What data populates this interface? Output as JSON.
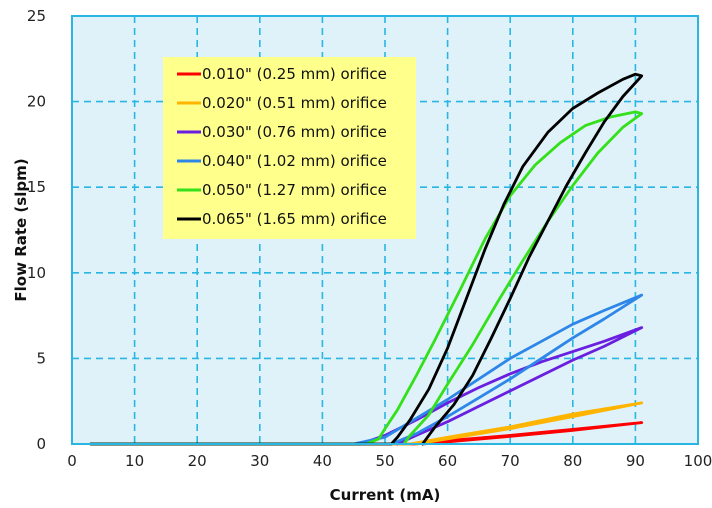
{
  "colors": {
    "plot_background": "#dff2fa",
    "frame_and_grid": "#29b6e3",
    "legend_background": "#ffff8c"
  },
  "chart_data": {
    "type": "line",
    "title": "",
    "xlabel": "Current (mA)",
    "ylabel": "Flow Rate (slpm)",
    "xlim": [
      0,
      100
    ],
    "ylim": [
      0,
      25
    ],
    "xticks": [
      0,
      10,
      20,
      30,
      40,
      50,
      60,
      70,
      80,
      90,
      100
    ],
    "yticks": [
      0,
      5,
      10,
      15,
      20,
      25
    ],
    "grid": "dashed",
    "legend_position": "top-left",
    "series": [
      {
        "name": "0.010\" (0.25 mm) orifice",
        "color": "#ff0000",
        "up": [
          [
            3,
            0
          ],
          [
            55,
            0
          ],
          [
            60,
            0.2
          ],
          [
            70,
            0.5
          ],
          [
            80,
            0.85
          ],
          [
            91,
            1.25
          ]
        ],
        "down": [
          [
            91,
            1.25
          ],
          [
            80,
            0.8
          ],
          [
            70,
            0.45
          ],
          [
            60,
            0.12
          ],
          [
            56,
            0
          ]
        ]
      },
      {
        "name": "0.020\" (0.51 mm) orifice",
        "color": "#ffb400",
        "up": [
          [
            3,
            0
          ],
          [
            54,
            0
          ],
          [
            60,
            0.4
          ],
          [
            70,
            1.0
          ],
          [
            80,
            1.75
          ],
          [
            91,
            2.4
          ]
        ],
        "down": [
          [
            91,
            2.4
          ],
          [
            80,
            1.6
          ],
          [
            70,
            0.9
          ],
          [
            60,
            0.3
          ],
          [
            55,
            0
          ]
        ]
      },
      {
        "name": "0.030\" (0.76 mm) orifice",
        "color": "#6a1ee0",
        "up": [
          [
            3,
            0
          ],
          [
            46,
            0
          ],
          [
            50,
            0.5
          ],
          [
            55,
            1.4
          ],
          [
            60,
            2.4
          ],
          [
            65,
            3.3
          ],
          [
            70,
            4.1
          ],
          [
            75,
            4.8
          ],
          [
            80,
            5.4
          ],
          [
            85,
            6.0
          ],
          [
            91,
            6.8
          ]
        ],
        "down": [
          [
            91,
            6.8
          ],
          [
            85,
            5.7
          ],
          [
            80,
            4.9
          ],
          [
            75,
            4.0
          ],
          [
            70,
            3.1
          ],
          [
            65,
            2.2
          ],
          [
            60,
            1.3
          ],
          [
            55,
            0.5
          ],
          [
            52,
            0
          ]
        ]
      },
      {
        "name": "0.040\" (1.02 mm) orifice",
        "color": "#2e86e8",
        "up": [
          [
            3,
            0
          ],
          [
            45,
            0
          ],
          [
            50,
            0.4
          ],
          [
            55,
            1.5
          ],
          [
            60,
            2.6
          ],
          [
            65,
            3.8
          ],
          [
            70,
            5.0
          ],
          [
            75,
            6.0
          ],
          [
            80,
            7.0
          ],
          [
            85,
            7.8
          ],
          [
            91,
            8.7
          ]
        ],
        "down": [
          [
            91,
            8.7
          ],
          [
            85,
            7.3
          ],
          [
            80,
            6.2
          ],
          [
            75,
            5.0
          ],
          [
            70,
            3.8
          ],
          [
            65,
            2.7
          ],
          [
            60,
            1.6
          ],
          [
            55,
            0.6
          ],
          [
            51,
            0
          ]
        ]
      },
      {
        "name": "0.050\" (1.27 mm) orifice",
        "color": "#33e01a",
        "up": [
          [
            3,
            0
          ],
          [
            47,
            0
          ],
          [
            49,
            0.3
          ],
          [
            50,
            0.9
          ],
          [
            52,
            2.0
          ],
          [
            55,
            4.0
          ],
          [
            58,
            6.1
          ],
          [
            62,
            9.0
          ],
          [
            66,
            12.0
          ],
          [
            70,
            14.5
          ],
          [
            74,
            16.3
          ],
          [
            78,
            17.6
          ],
          [
            82,
            18.6
          ],
          [
            86,
            19.1
          ],
          [
            90,
            19.4
          ],
          [
            91,
            19.3
          ]
        ],
        "down": [
          [
            91,
            19.3
          ],
          [
            88,
            18.5
          ],
          [
            84,
            17.0
          ],
          [
            80,
            15.1
          ],
          [
            76,
            13.0
          ],
          [
            72,
            10.7
          ],
          [
            68,
            8.3
          ],
          [
            64,
            5.8
          ],
          [
            60,
            3.5
          ],
          [
            57,
            1.7
          ],
          [
            54,
            0.5
          ],
          [
            53,
            0
          ]
        ]
      },
      {
        "name": "0.065\" (1.65 mm) orifice",
        "color": "#000000",
        "up": [
          [
            3,
            0
          ],
          [
            51,
            0
          ],
          [
            52,
            0.4
          ],
          [
            54,
            1.4
          ],
          [
            57,
            3.2
          ],
          [
            60,
            5.6
          ],
          [
            63,
            8.5
          ],
          [
            66,
            11.4
          ],
          [
            69,
            14.0
          ],
          [
            72,
            16.2
          ],
          [
            76,
            18.2
          ],
          [
            80,
            19.6
          ],
          [
            84,
            20.5
          ],
          [
            88,
            21.3
          ],
          [
            90,
            21.6
          ],
          [
            91,
            21.5
          ]
        ],
        "down": [
          [
            91,
            21.5
          ],
          [
            88,
            20.3
          ],
          [
            85,
            18.8
          ],
          [
            82,
            17.0
          ],
          [
            79,
            15.1
          ],
          [
            76,
            13.0
          ],
          [
            73,
            10.9
          ],
          [
            70,
            8.5
          ],
          [
            67,
            6.2
          ],
          [
            64,
            4.0
          ],
          [
            61,
            2.3
          ],
          [
            58,
            1.0
          ],
          [
            57,
            0.5
          ],
          [
            56,
            0
          ]
        ]
      }
    ]
  }
}
